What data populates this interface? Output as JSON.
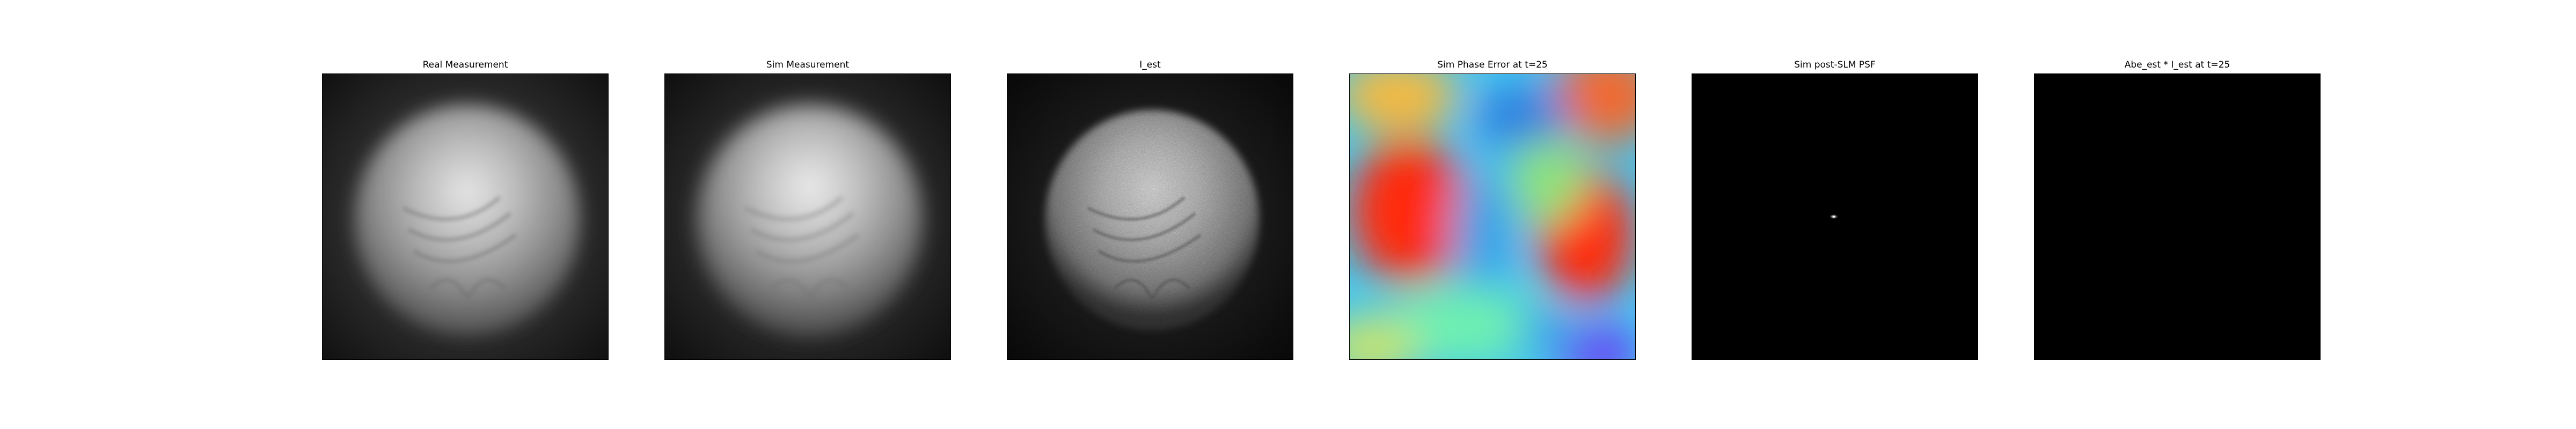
{
  "figure": {
    "panels": [
      {
        "title": "Real Measurement",
        "kind": "blurred-disk"
      },
      {
        "title": "Sim Measurement",
        "kind": "blurred-disk-smooth"
      },
      {
        "title": "I_est",
        "kind": "sharp-disk"
      },
      {
        "title": "Sim Phase Error at t=25",
        "kind": "phase-colormap"
      },
      {
        "title": "Sim post-SLM PSF",
        "kind": "point-psf"
      },
      {
        "title": "Abe_est * I_est at t=25",
        "kind": "black"
      }
    ]
  }
}
